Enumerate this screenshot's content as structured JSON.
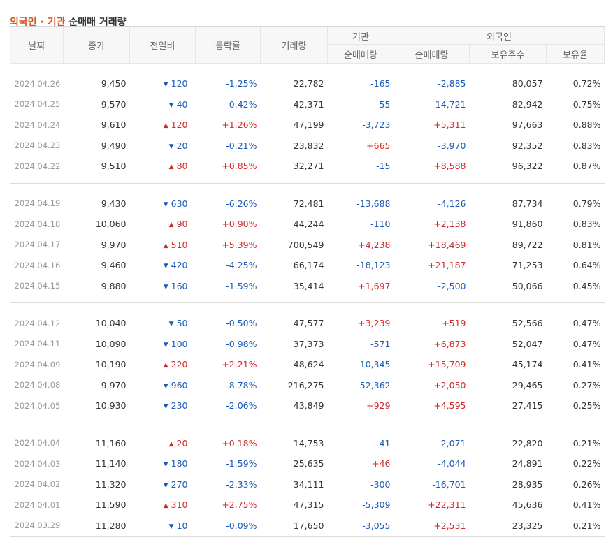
{
  "title": {
    "accent": "외국인 · 기관",
    "rest": " 순매매 거래량"
  },
  "headers": {
    "date": "날짜",
    "close": "종가",
    "change": "전일비",
    "rate": "등락률",
    "volume": "거래량",
    "institution": "기관",
    "foreign": "외국인",
    "inst_net": "순매매량",
    "foreign_net": "순매매량",
    "foreign_holdings": "보유주수",
    "foreign_ratio": "보유율"
  },
  "colors": {
    "up": "#d22a2a",
    "down": "#1a5bb8",
    "accent": "#d9531e"
  },
  "groups": [
    {
      "rows": [
        {
          "date": "2024.04.26",
          "close": "9,450",
          "dir": "down",
          "change": "120",
          "rate": "-1.25%",
          "volume": "22,782",
          "inst": "-165",
          "foreign": "-2,885",
          "holdings": "80,057",
          "ratio": "0.72%"
        },
        {
          "date": "2024.04.25",
          "close": "9,570",
          "dir": "down",
          "change": "40",
          "rate": "-0.42%",
          "volume": "42,371",
          "inst": "-55",
          "foreign": "-14,721",
          "holdings": "82,942",
          "ratio": "0.75%"
        },
        {
          "date": "2024.04.24",
          "close": "9,610",
          "dir": "up",
          "change": "120",
          "rate": "+1.26%",
          "volume": "47,199",
          "inst": "-3,723",
          "foreign": "+5,311",
          "holdings": "97,663",
          "ratio": "0.88%"
        },
        {
          "date": "2024.04.23",
          "close": "9,490",
          "dir": "down",
          "change": "20",
          "rate": "-0.21%",
          "volume": "23,832",
          "inst": "+665",
          "foreign": "-3,970",
          "holdings": "92,352",
          "ratio": "0.83%"
        },
        {
          "date": "2024.04.22",
          "close": "9,510",
          "dir": "up",
          "change": "80",
          "rate": "+0.85%",
          "volume": "32,271",
          "inst": "-15",
          "foreign": "+8,588",
          "holdings": "96,322",
          "ratio": "0.87%"
        }
      ]
    },
    {
      "rows": [
        {
          "date": "2024.04.19",
          "close": "9,430",
          "dir": "down",
          "change": "630",
          "rate": "-6.26%",
          "volume": "72,481",
          "inst": "-13,688",
          "foreign": "-4,126",
          "holdings": "87,734",
          "ratio": "0.79%"
        },
        {
          "date": "2024.04.18",
          "close": "10,060",
          "dir": "up",
          "change": "90",
          "rate": "+0.90%",
          "volume": "44,244",
          "inst": "-110",
          "foreign": "+2,138",
          "holdings": "91,860",
          "ratio": "0.83%"
        },
        {
          "date": "2024.04.17",
          "close": "9,970",
          "dir": "up",
          "change": "510",
          "rate": "+5.39%",
          "volume": "700,549",
          "inst": "+4,238",
          "foreign": "+18,469",
          "holdings": "89,722",
          "ratio": "0.81%"
        },
        {
          "date": "2024.04.16",
          "close": "9,460",
          "dir": "down",
          "change": "420",
          "rate": "-4.25%",
          "volume": "66,174",
          "inst": "-18,123",
          "foreign": "+21,187",
          "holdings": "71,253",
          "ratio": "0.64%"
        },
        {
          "date": "2024.04.15",
          "close": "9,880",
          "dir": "down",
          "change": "160",
          "rate": "-1.59%",
          "volume": "35,414",
          "inst": "+1,697",
          "foreign": "-2,500",
          "holdings": "50,066",
          "ratio": "0.45%"
        }
      ]
    },
    {
      "rows": [
        {
          "date": "2024.04.12",
          "close": "10,040",
          "dir": "down",
          "change": "50",
          "rate": "-0.50%",
          "volume": "47,577",
          "inst": "+3,239",
          "foreign": "+519",
          "holdings": "52,566",
          "ratio": "0.47%"
        },
        {
          "date": "2024.04.11",
          "close": "10,090",
          "dir": "down",
          "change": "100",
          "rate": "-0.98%",
          "volume": "37,373",
          "inst": "-571",
          "foreign": "+6,873",
          "holdings": "52,047",
          "ratio": "0.47%"
        },
        {
          "date": "2024.04.09",
          "close": "10,190",
          "dir": "up",
          "change": "220",
          "rate": "+2.21%",
          "volume": "48,624",
          "inst": "-10,345",
          "foreign": "+15,709",
          "holdings": "45,174",
          "ratio": "0.41%"
        },
        {
          "date": "2024.04.08",
          "close": "9,970",
          "dir": "down",
          "change": "960",
          "rate": "-8.78%",
          "volume": "216,275",
          "inst": "-52,362",
          "foreign": "+2,050",
          "holdings": "29,465",
          "ratio": "0.27%"
        },
        {
          "date": "2024.04.05",
          "close": "10,930",
          "dir": "down",
          "change": "230",
          "rate": "-2.06%",
          "volume": "43,849",
          "inst": "+929",
          "foreign": "+4,595",
          "holdings": "27,415",
          "ratio": "0.25%"
        }
      ]
    },
    {
      "rows": [
        {
          "date": "2024.04.04",
          "close": "11,160",
          "dir": "up",
          "change": "20",
          "rate": "+0.18%",
          "volume": "14,753",
          "inst": "-41",
          "foreign": "-2,071",
          "holdings": "22,820",
          "ratio": "0.21%"
        },
        {
          "date": "2024.04.03",
          "close": "11,140",
          "dir": "down",
          "change": "180",
          "rate": "-1.59%",
          "volume": "25,635",
          "inst": "+46",
          "foreign": "-4,044",
          "holdings": "24,891",
          "ratio": "0.22%"
        },
        {
          "date": "2024.04.02",
          "close": "11,320",
          "dir": "down",
          "change": "270",
          "rate": "-2.33%",
          "volume": "34,111",
          "inst": "-300",
          "foreign": "-16,701",
          "holdings": "28,935",
          "ratio": "0.26%"
        },
        {
          "date": "2024.04.01",
          "close": "11,590",
          "dir": "up",
          "change": "310",
          "rate": "+2.75%",
          "volume": "47,315",
          "inst": "-5,309",
          "foreign": "+22,311",
          "holdings": "45,636",
          "ratio": "0.41%"
        },
        {
          "date": "2024.03.29",
          "close": "11,280",
          "dir": "down",
          "change": "10",
          "rate": "-0.09%",
          "volume": "17,650",
          "inst": "-3,055",
          "foreign": "+2,531",
          "holdings": "23,325",
          "ratio": "0.21%"
        }
      ]
    }
  ]
}
